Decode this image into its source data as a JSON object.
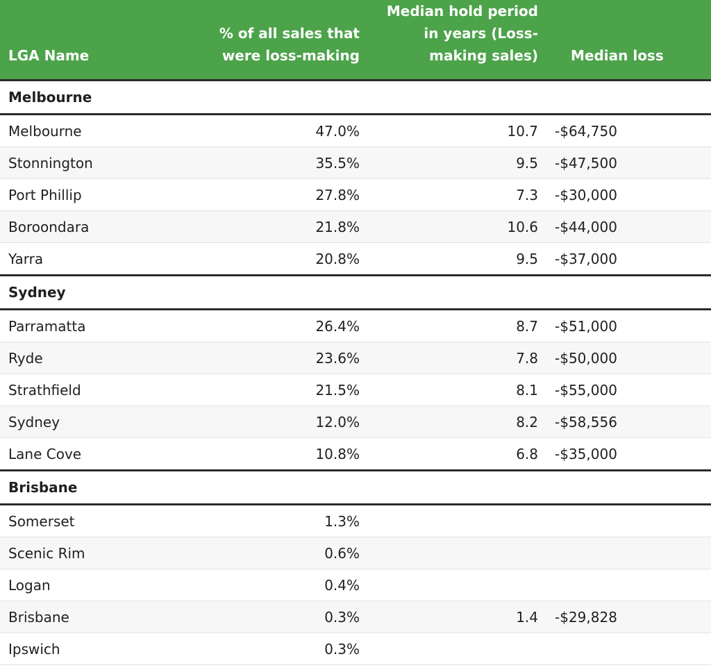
{
  "headers": {
    "lga": "LGA Name",
    "pct": "% of all sales that were loss-making",
    "hold": "Median hold period in years (Loss-making sales)",
    "loss": "Median loss"
  },
  "groups": [
    {
      "name": "Melbourne",
      "rows": [
        {
          "lga": "Melbourne",
          "pct": "47.0%",
          "hold": "10.7",
          "loss": "-$64,750"
        },
        {
          "lga": "Stonnington",
          "pct": "35.5%",
          "hold": "9.5",
          "loss": "-$47,500"
        },
        {
          "lga": "Port Phillip",
          "pct": "27.8%",
          "hold": "7.3",
          "loss": "-$30,000"
        },
        {
          "lga": "Boroondara",
          "pct": "21.8%",
          "hold": "10.6",
          "loss": "-$44,000"
        },
        {
          "lga": "Yarra",
          "pct": "20.8%",
          "hold": "9.5",
          "loss": "-$37,000"
        }
      ]
    },
    {
      "name": "Sydney",
      "rows": [
        {
          "lga": "Parramatta",
          "pct": "26.4%",
          "hold": "8.7",
          "loss": "-$51,000"
        },
        {
          "lga": "Ryde",
          "pct": "23.6%",
          "hold": "7.8",
          "loss": "-$50,000"
        },
        {
          "lga": "Strathfield",
          "pct": "21.5%",
          "hold": "8.1",
          "loss": "-$55,000"
        },
        {
          "lga": "Sydney",
          "pct": "12.0%",
          "hold": "8.2",
          "loss": "-$58,556"
        },
        {
          "lga": "Lane Cove",
          "pct": "10.8%",
          "hold": "6.8",
          "loss": "-$35,000"
        }
      ]
    },
    {
      "name": "Brisbane",
      "rows": [
        {
          "lga": "Somerset",
          "pct": "1.3%",
          "hold": "",
          "loss": ""
        },
        {
          "lga": "Scenic Rim",
          "pct": "0.6%",
          "hold": "",
          "loss": ""
        },
        {
          "lga": "Logan",
          "pct": "0.4%",
          "hold": "",
          "loss": ""
        },
        {
          "lga": "Brisbane",
          "pct": "0.3%",
          "hold": "1.4",
          "loss": "-$29,828"
        },
        {
          "lga": "Ipswich",
          "pct": "0.3%",
          "hold": "",
          "loss": ""
        }
      ]
    }
  ]
}
